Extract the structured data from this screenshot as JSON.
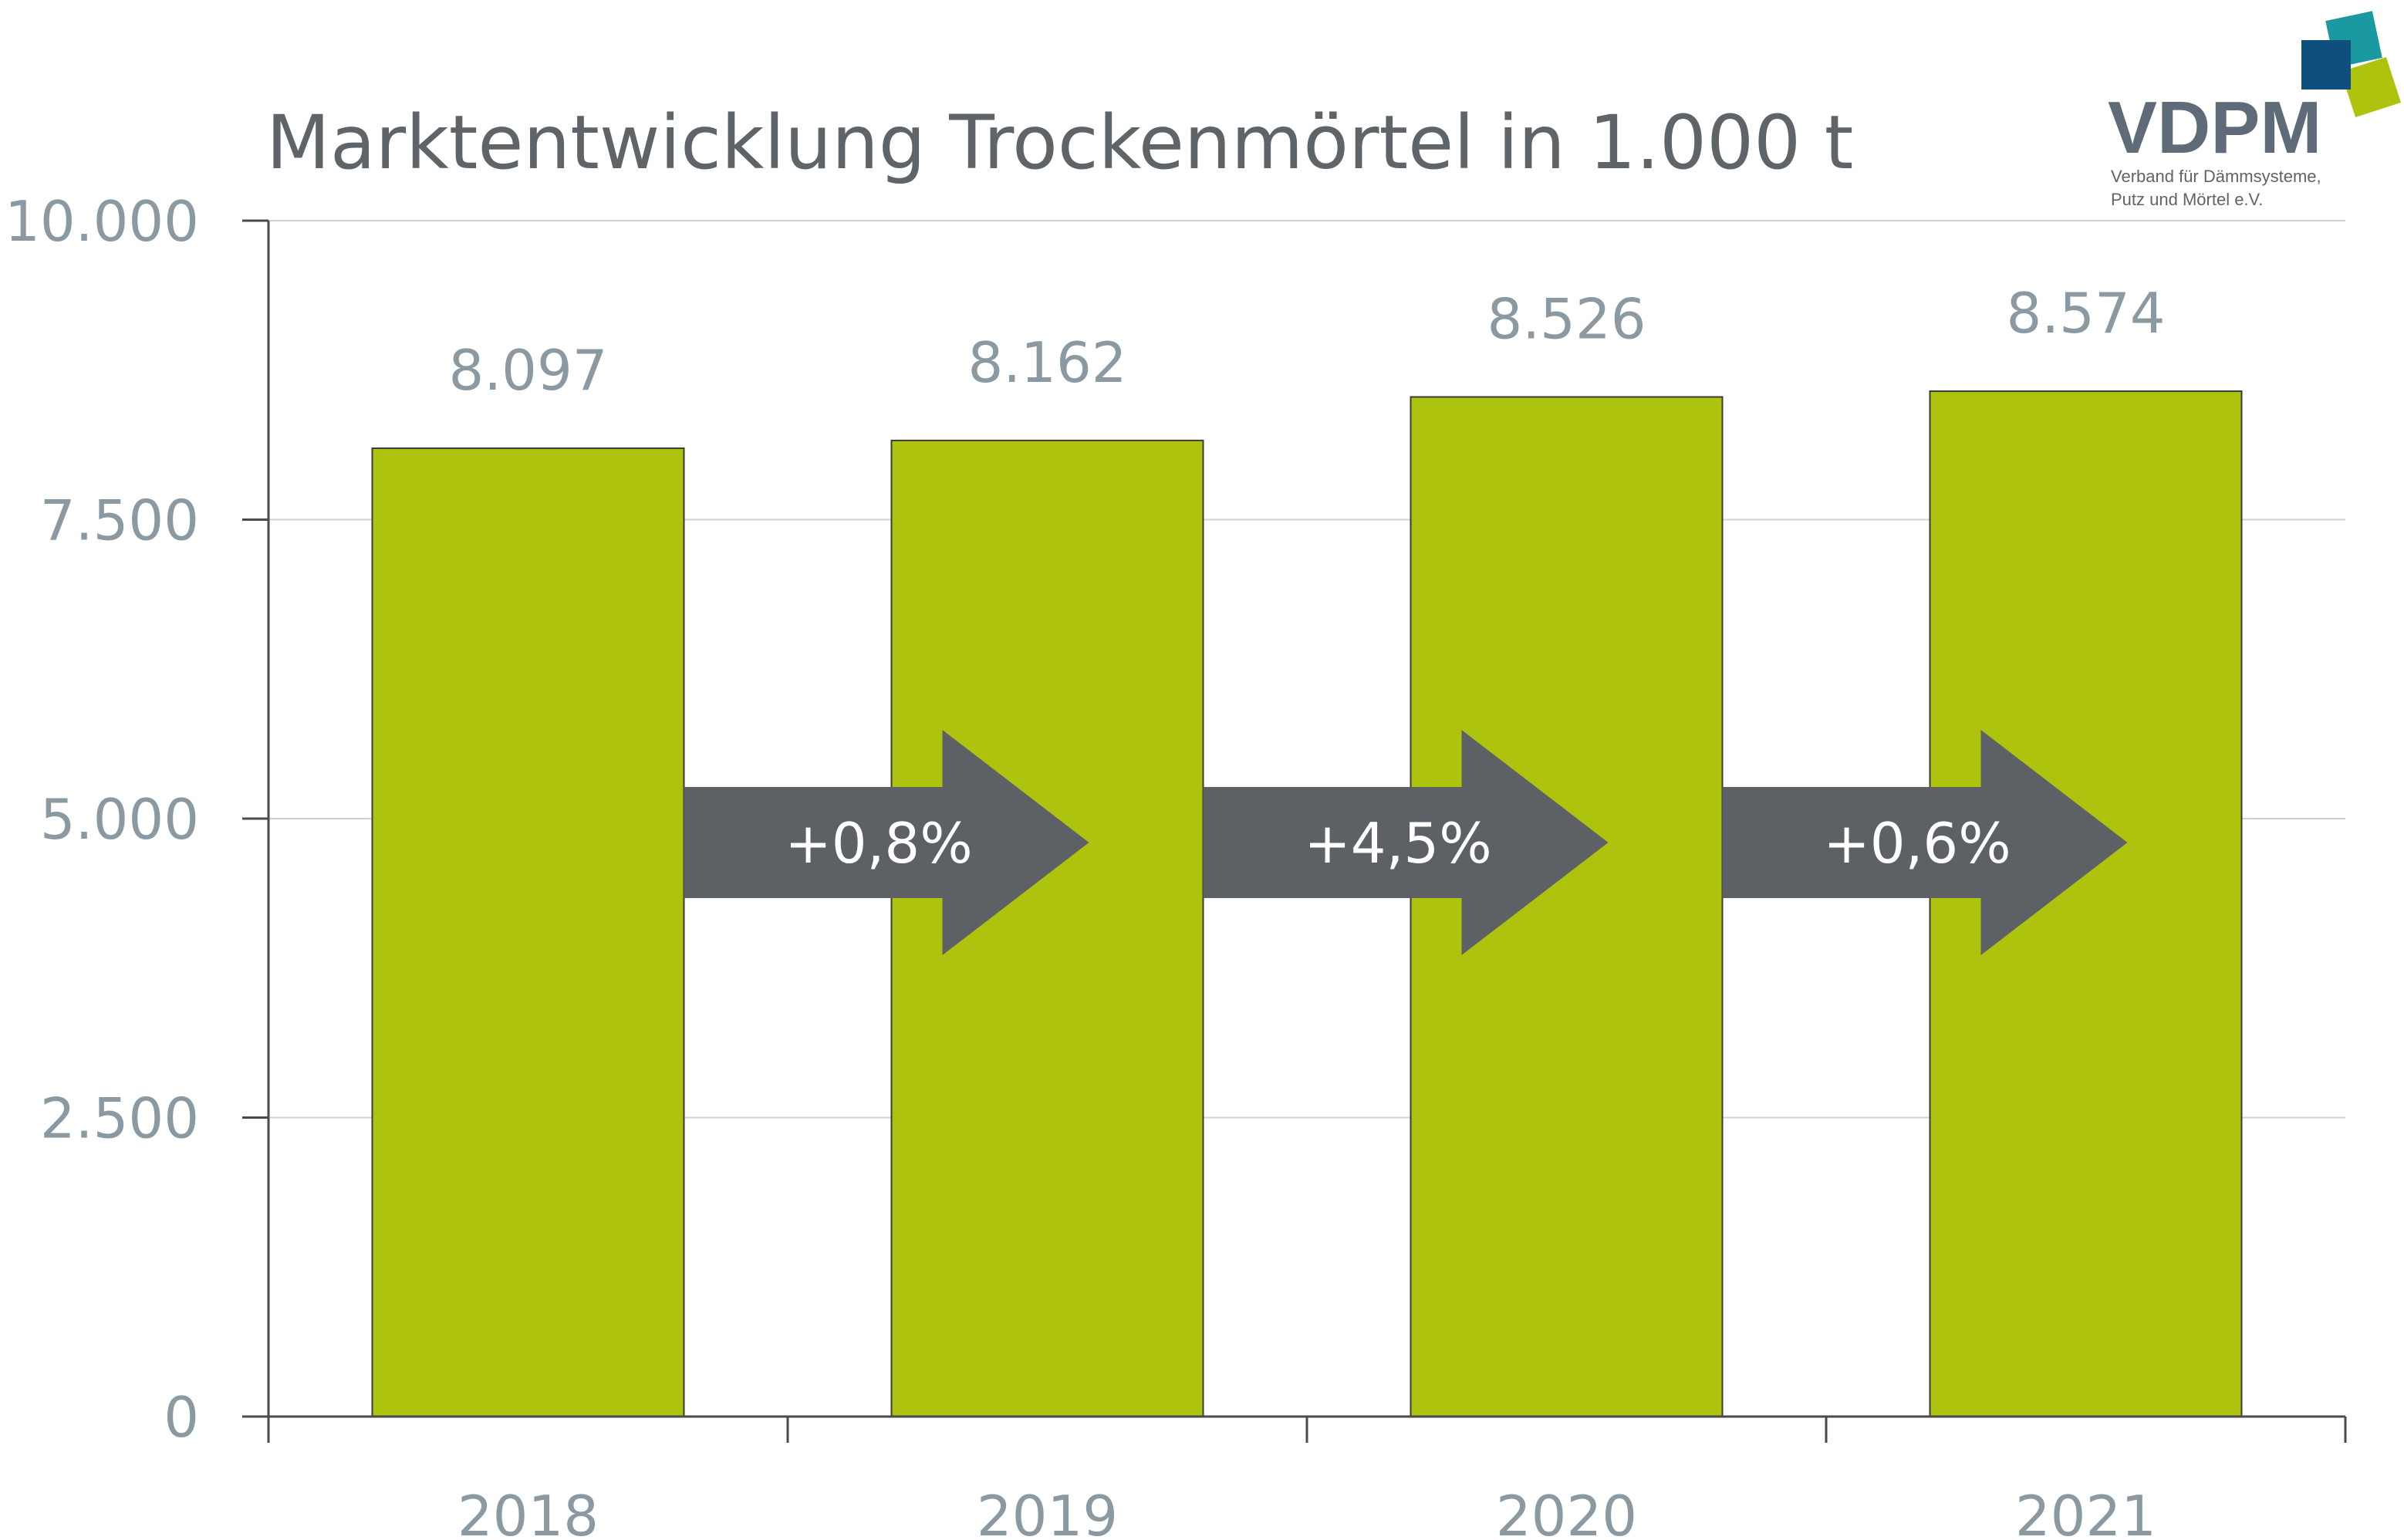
{
  "colors": {
    "bar": "#adc30e",
    "bar_stroke": "#3b3b3b",
    "arrow": "#5d6166",
    "grid": "#cfd3d6",
    "axis": "#4a4a4a",
    "logo_teal": "#1a9aa0",
    "logo_navy": "#0e4f7d",
    "logo_green": "#adc30e"
  },
  "logo": {
    "name": "VDPM",
    "subtitle_line1": "Verband für Dämmsysteme,",
    "subtitle_line2": "Putz und Mörtel e.V."
  },
  "chart_data": {
    "type": "bar",
    "title": "Marktentwicklung Trockenmörtel in 1.000 t",
    "categories": [
      "2018",
      "2019",
      "2020",
      "2021"
    ],
    "values": [
      8097,
      8162,
      8526,
      8574
    ],
    "value_labels": [
      "8.097",
      "8.162",
      "8.526",
      "8.574"
    ],
    "changes": [
      "+0,8%",
      "+4,5%",
      "+0,6%"
    ],
    "ylim": [
      0,
      10000
    ],
    "yticks": [
      0,
      2500,
      5000,
      7500,
      10000
    ],
    "ytick_labels": [
      "0",
      "2.500",
      "5.000",
      "7.500",
      "10.000"
    ],
    "grid": true,
    "xlabel": "",
    "ylabel": ""
  }
}
